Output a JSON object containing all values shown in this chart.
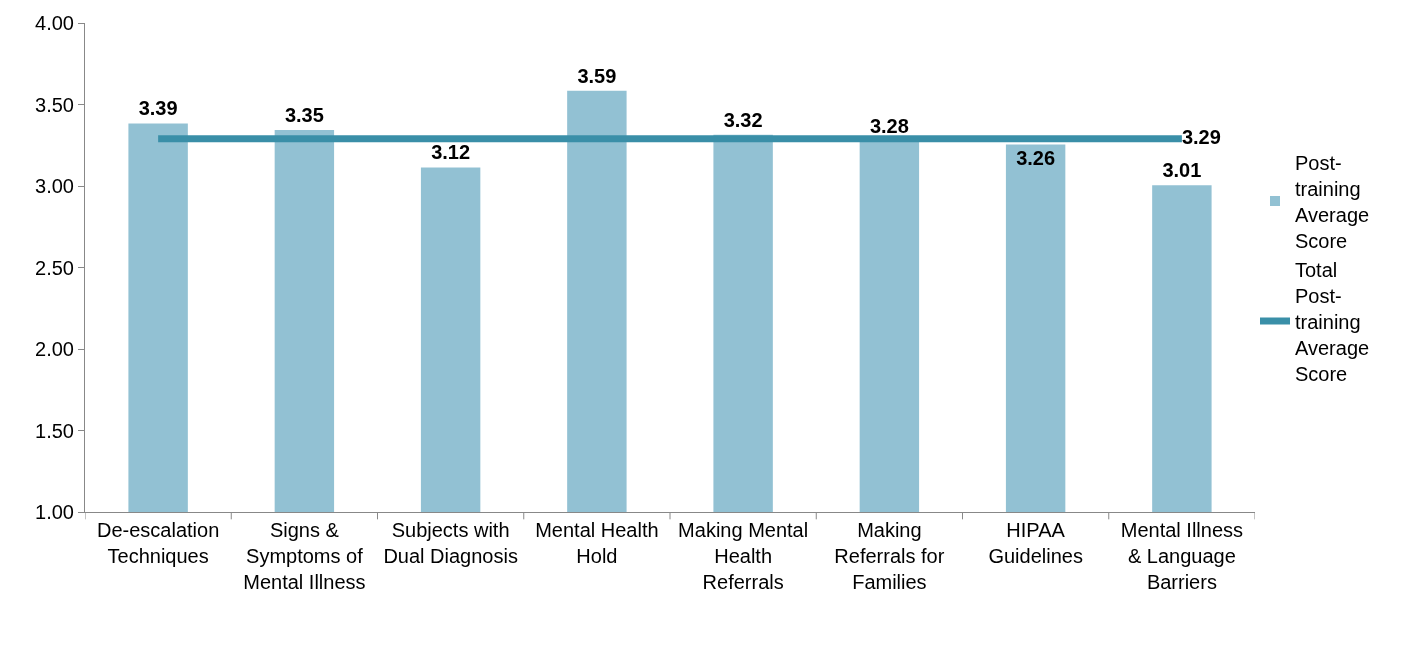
{
  "chart_data": {
    "type": "bar",
    "categories": [
      "De-escalation Techniques",
      "Signs & Symptoms of Mental Illness",
      "Subjects with Dual Diagnosis",
      "Mental Health Hold",
      "Making Mental Health Referrals",
      "Making Referrals for Families",
      "HIPAA Guidelines",
      "Mental Illness & Language Barriers"
    ],
    "series": [
      {
        "name": "Post-training Average Score",
        "color": "#92c1d3",
        "values": [
          3.39,
          3.35,
          3.12,
          3.59,
          3.32,
          3.28,
          3.26,
          3.01
        ],
        "value_labels": [
          "3.39",
          "3.35",
          "3.12",
          "3.59",
          "3.32",
          "3.28",
          "3.26",
          "3.01"
        ]
      },
      {
        "name": "Total Post-training Average Score",
        "type": "line",
        "color": "#3a8fa8",
        "values": [
          3.29,
          3.29,
          3.29,
          3.29,
          3.29,
          3.29,
          3.29,
          3.29
        ],
        "value_labels": [
          null,
          null,
          null,
          null,
          null,
          null,
          null,
          "3.29"
        ]
      }
    ],
    "ylim": [
      1,
      4
    ],
    "yticks": [
      {
        "value": 1,
        "label": "1.00"
      },
      {
        "value": 1.5,
        "label": "1.50"
      },
      {
        "value": 2,
        "label": "2.00"
      },
      {
        "value": 2.5,
        "label": "2.50"
      },
      {
        "value": 3,
        "label": "3.00"
      },
      {
        "value": 3.5,
        "label": "3.50"
      },
      {
        "value": 4,
        "label": "4.00"
      }
    ],
    "grid": false,
    "legend": "right",
    "marker": "none",
    "line_style": "solid"
  }
}
